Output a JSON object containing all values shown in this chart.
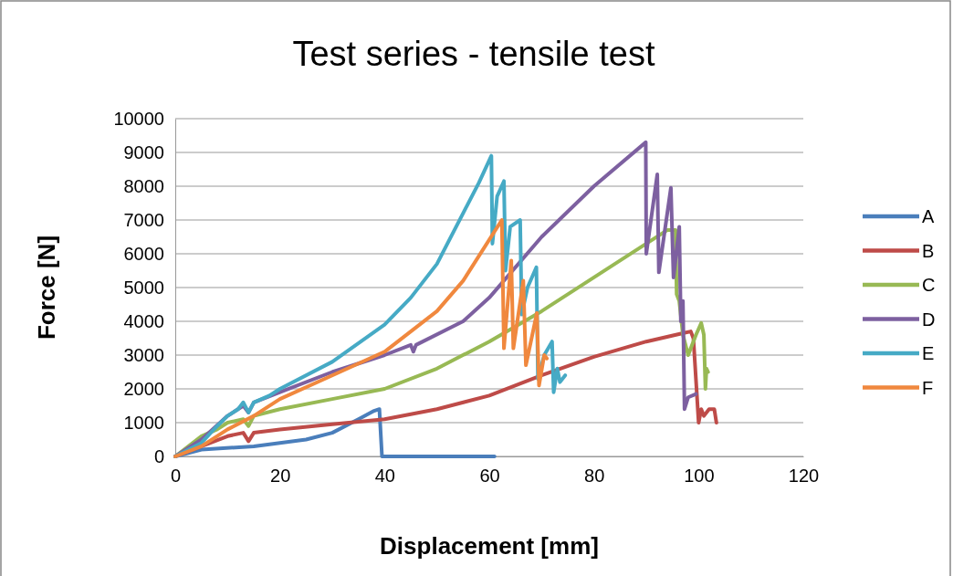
{
  "chart_data": {
    "type": "line",
    "title": "Test series - tensile test",
    "xlabel": "Displacement [mm]",
    "ylabel": "Force [N]",
    "xlim": [
      0,
      120
    ],
    "xticks": [
      0,
      20,
      40,
      60,
      80,
      100,
      120
    ],
    "ylim": [
      0,
      10000
    ],
    "yticks": [
      0,
      1000,
      2000,
      3000,
      4000,
      5000,
      6000,
      7000,
      8000,
      9000,
      10000
    ],
    "grid": "y",
    "legend": "right",
    "marker": "none",
    "line_style": "solid",
    "series": [
      {
        "name": "A",
        "color": "#4a7ebb",
        "x": [
          0,
          5,
          15,
          25,
          30,
          35,
          38,
          39,
          39.5,
          61
        ],
        "values": [
          0,
          200,
          300,
          500,
          700,
          1100,
          1350,
          1400,
          0,
          0
        ]
      },
      {
        "name": "B",
        "color": "#be4b48",
        "x": [
          0,
          5,
          10,
          13,
          14,
          15,
          20,
          30,
          40,
          50,
          60,
          70,
          80,
          90,
          97,
          98.5,
          99,
          99.6,
          100,
          100.5,
          101,
          102,
          103,
          103.4
        ],
        "values": [
          0,
          300,
          600,
          700,
          450,
          700,
          800,
          950,
          1100,
          1400,
          1800,
          2400,
          2950,
          3400,
          3650,
          3700,
          3500,
          2000,
          1000,
          1400,
          1200,
          1400,
          1400,
          1000
        ]
      },
      {
        "name": "C",
        "color": "#98b954",
        "x": [
          0,
          5,
          8,
          10,
          13,
          14,
          15,
          20,
          30,
          40,
          50,
          60,
          70,
          80,
          90,
          94,
          95.6,
          95.8,
          96.3,
          97,
          98,
          99.5,
          100.5,
          101,
          101.3,
          101.5,
          101.8
        ],
        "values": [
          0,
          600,
          800,
          1000,
          1100,
          900,
          1200,
          1400,
          1700,
          2000,
          2600,
          3400,
          4300,
          5300,
          6300,
          6700,
          6700,
          4800,
          4600,
          3600,
          3000,
          3600,
          3950,
          3600,
          2000,
          2600,
          2500
        ]
      },
      {
        "name": "D",
        "color": "#7d60a0",
        "x": [
          0,
          5,
          10,
          13,
          14,
          15,
          20,
          30,
          40,
          45,
          45.5,
          46,
          55,
          60,
          70,
          80,
          89.9,
          90,
          92.1,
          92.4,
          94.7,
          95.2,
          96.3,
          96.6,
          97,
          97.3,
          98,
          99.5
        ],
        "values": [
          0,
          500,
          1200,
          1500,
          1300,
          1600,
          1900,
          2500,
          3000,
          3300,
          3100,
          3300,
          4000,
          4700,
          6500,
          8000,
          9300,
          6000,
          8350,
          5450,
          7950,
          5300,
          6800,
          4000,
          4600,
          1400,
          1750,
          1850
        ]
      },
      {
        "name": "E",
        "color": "#46aac5",
        "x": [
          0,
          5,
          8,
          10,
          12,
          13,
          14,
          15,
          18,
          20,
          30,
          40,
          45,
          50,
          55,
          58,
          60.4,
          60.6,
          61.5,
          62.8,
          63.1,
          64,
          65.9,
          66.2,
          67.3,
          69,
          69.3,
          70.5,
          72,
          72.3,
          73,
          73.5,
          74.5
        ],
        "values": [
          0,
          400,
          900,
          1200,
          1400,
          1600,
          1300,
          1600,
          1800,
          2000,
          2800,
          3900,
          4700,
          5700,
          7200,
          8100,
          8900,
          6300,
          7700,
          8150,
          5500,
          6800,
          7000,
          4200,
          5000,
          5600,
          2300,
          3000,
          3400,
          1900,
          2600,
          2200,
          2400
        ]
      },
      {
        "name": "F",
        "color": "#f0883e",
        "x": [
          0,
          5,
          10,
          15,
          20,
          30,
          40,
          50,
          55,
          62.4,
          62.8,
          64.2,
          64.6,
          66.5,
          67,
          69.1,
          69.5,
          70.5,
          71
        ],
        "values": [
          0,
          300,
          800,
          1200,
          1700,
          2400,
          3100,
          4300,
          5200,
          7000,
          3200,
          5800,
          3200,
          5200,
          2700,
          4250,
          2100,
          3000,
          2900
        ]
      }
    ]
  }
}
